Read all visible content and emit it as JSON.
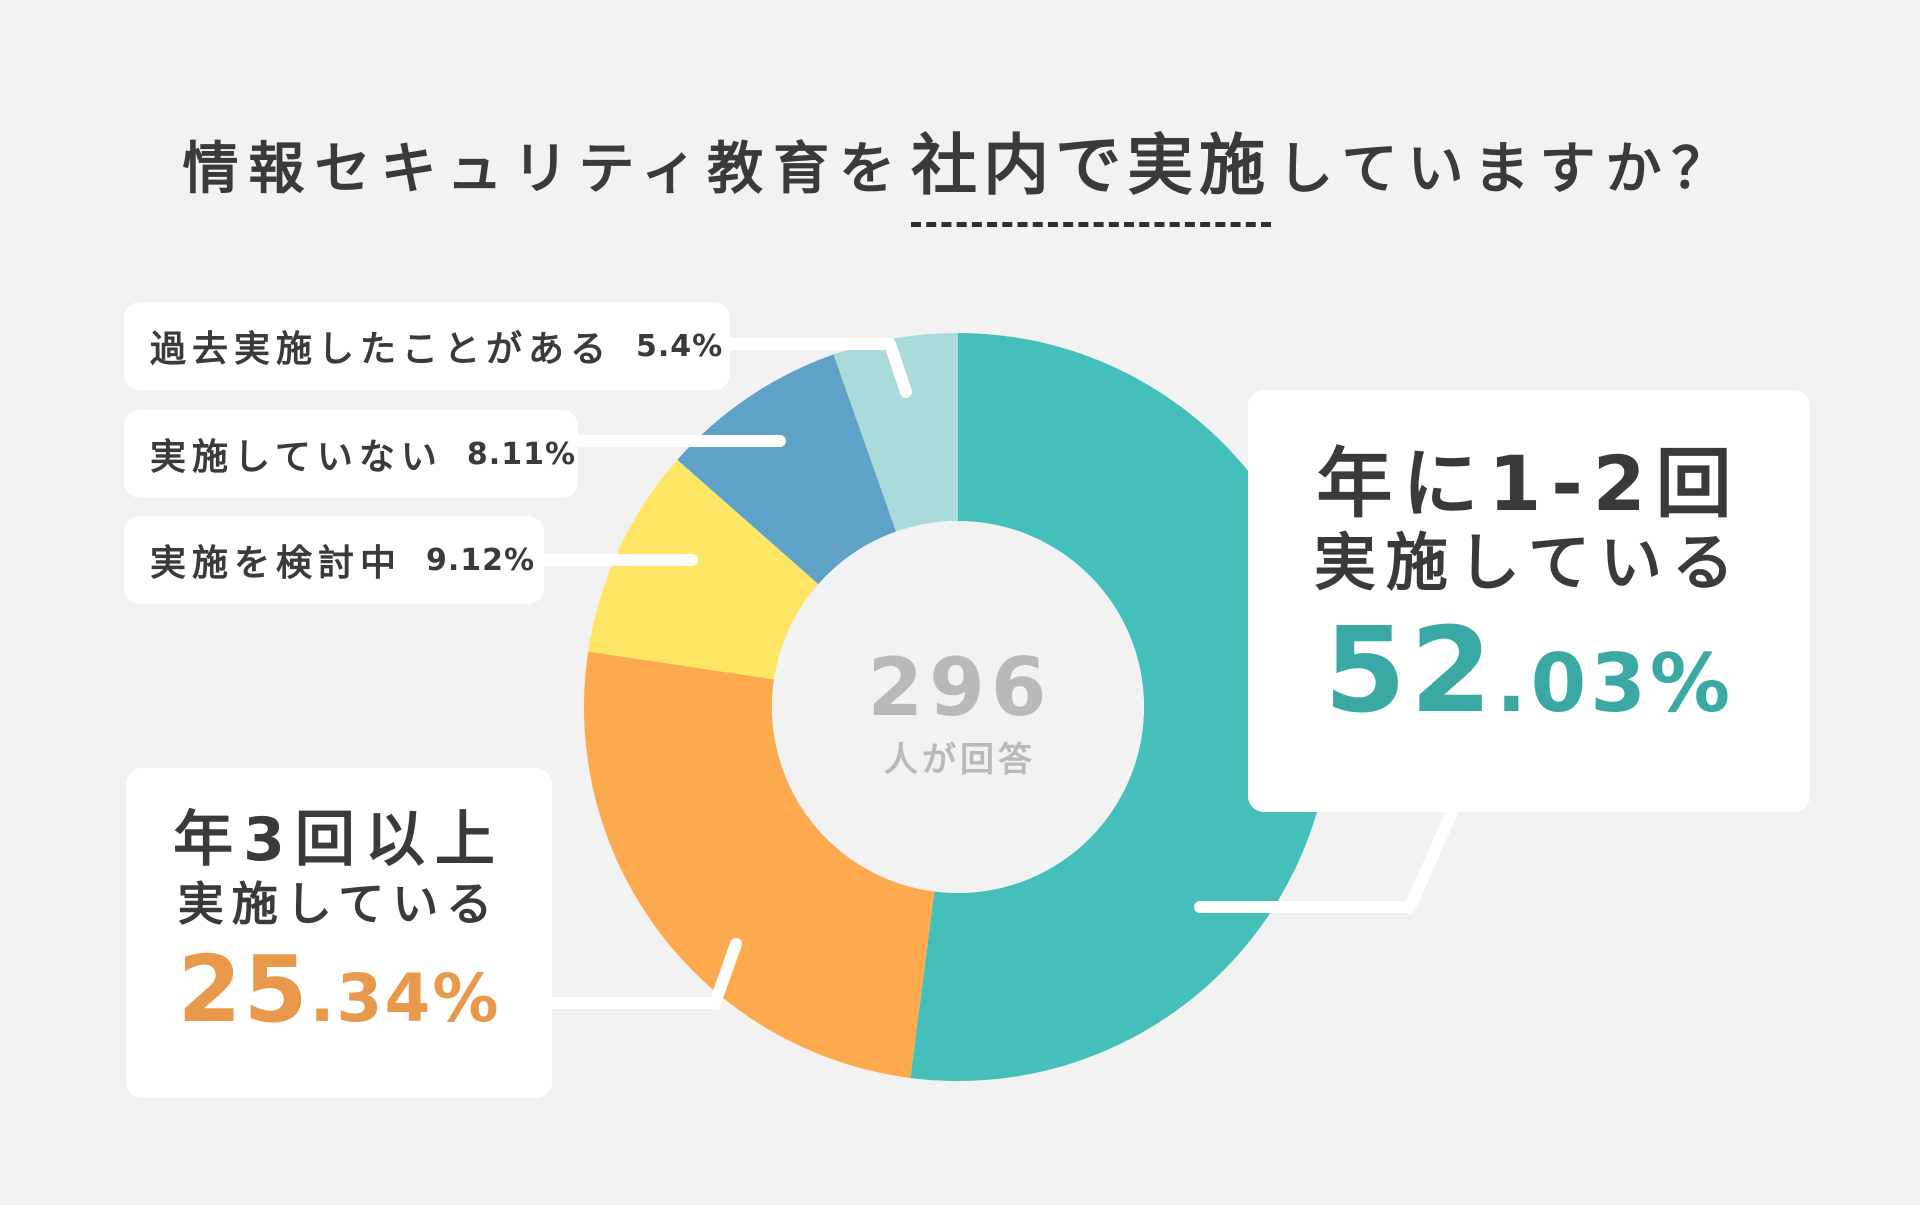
{
  "title": {
    "before": "情報セキュリティ教育を",
    "emphasis": "社内で実施",
    "after": "していますか？"
  },
  "center": {
    "total": "296",
    "unit": "人が回答"
  },
  "colors": {
    "teal": "#44bfb9",
    "orange": "#fdaa4e",
    "yellow": "#fee665",
    "blue": "#5ea2c8",
    "lightteal": "#aadadb",
    "teal_text": "#3aa9a3",
    "orange_text": "#e8994b"
  },
  "chart_data": {
    "type": "pie",
    "donut": true,
    "total_respondents": 296,
    "unit": "%",
    "slices": [
      {
        "label": "年に1-2回実施している",
        "value": 52.03,
        "color": "#44bfb9"
      },
      {
        "label": "年3回以上実施している",
        "value": 25.34,
        "color": "#fdaa4e"
      },
      {
        "label": "実施を検討中",
        "value": 9.12,
        "color": "#fee665"
      },
      {
        "label": "実施していない",
        "value": 8.11,
        "color": "#5ea2c8"
      },
      {
        "label": "過去実施したことがある",
        "value": 5.4,
        "color": "#aadadb"
      }
    ]
  },
  "callouts": {
    "annual12": {
      "line1": "年に1-2回",
      "line2": "実施している",
      "pct_int": "52",
      "pct_dec": ".03%"
    },
    "annual3": {
      "line1": "年3回以上",
      "line2": "実施している",
      "pct_int": "25",
      "pct_dec": ".34%"
    },
    "past": {
      "label": "過去実施したことがある",
      "pct": "5.4%"
    },
    "none": {
      "label": "実施していない",
      "pct": "8.11%"
    },
    "considering": {
      "label": "実施を検討中",
      "pct": "9.12%"
    }
  }
}
